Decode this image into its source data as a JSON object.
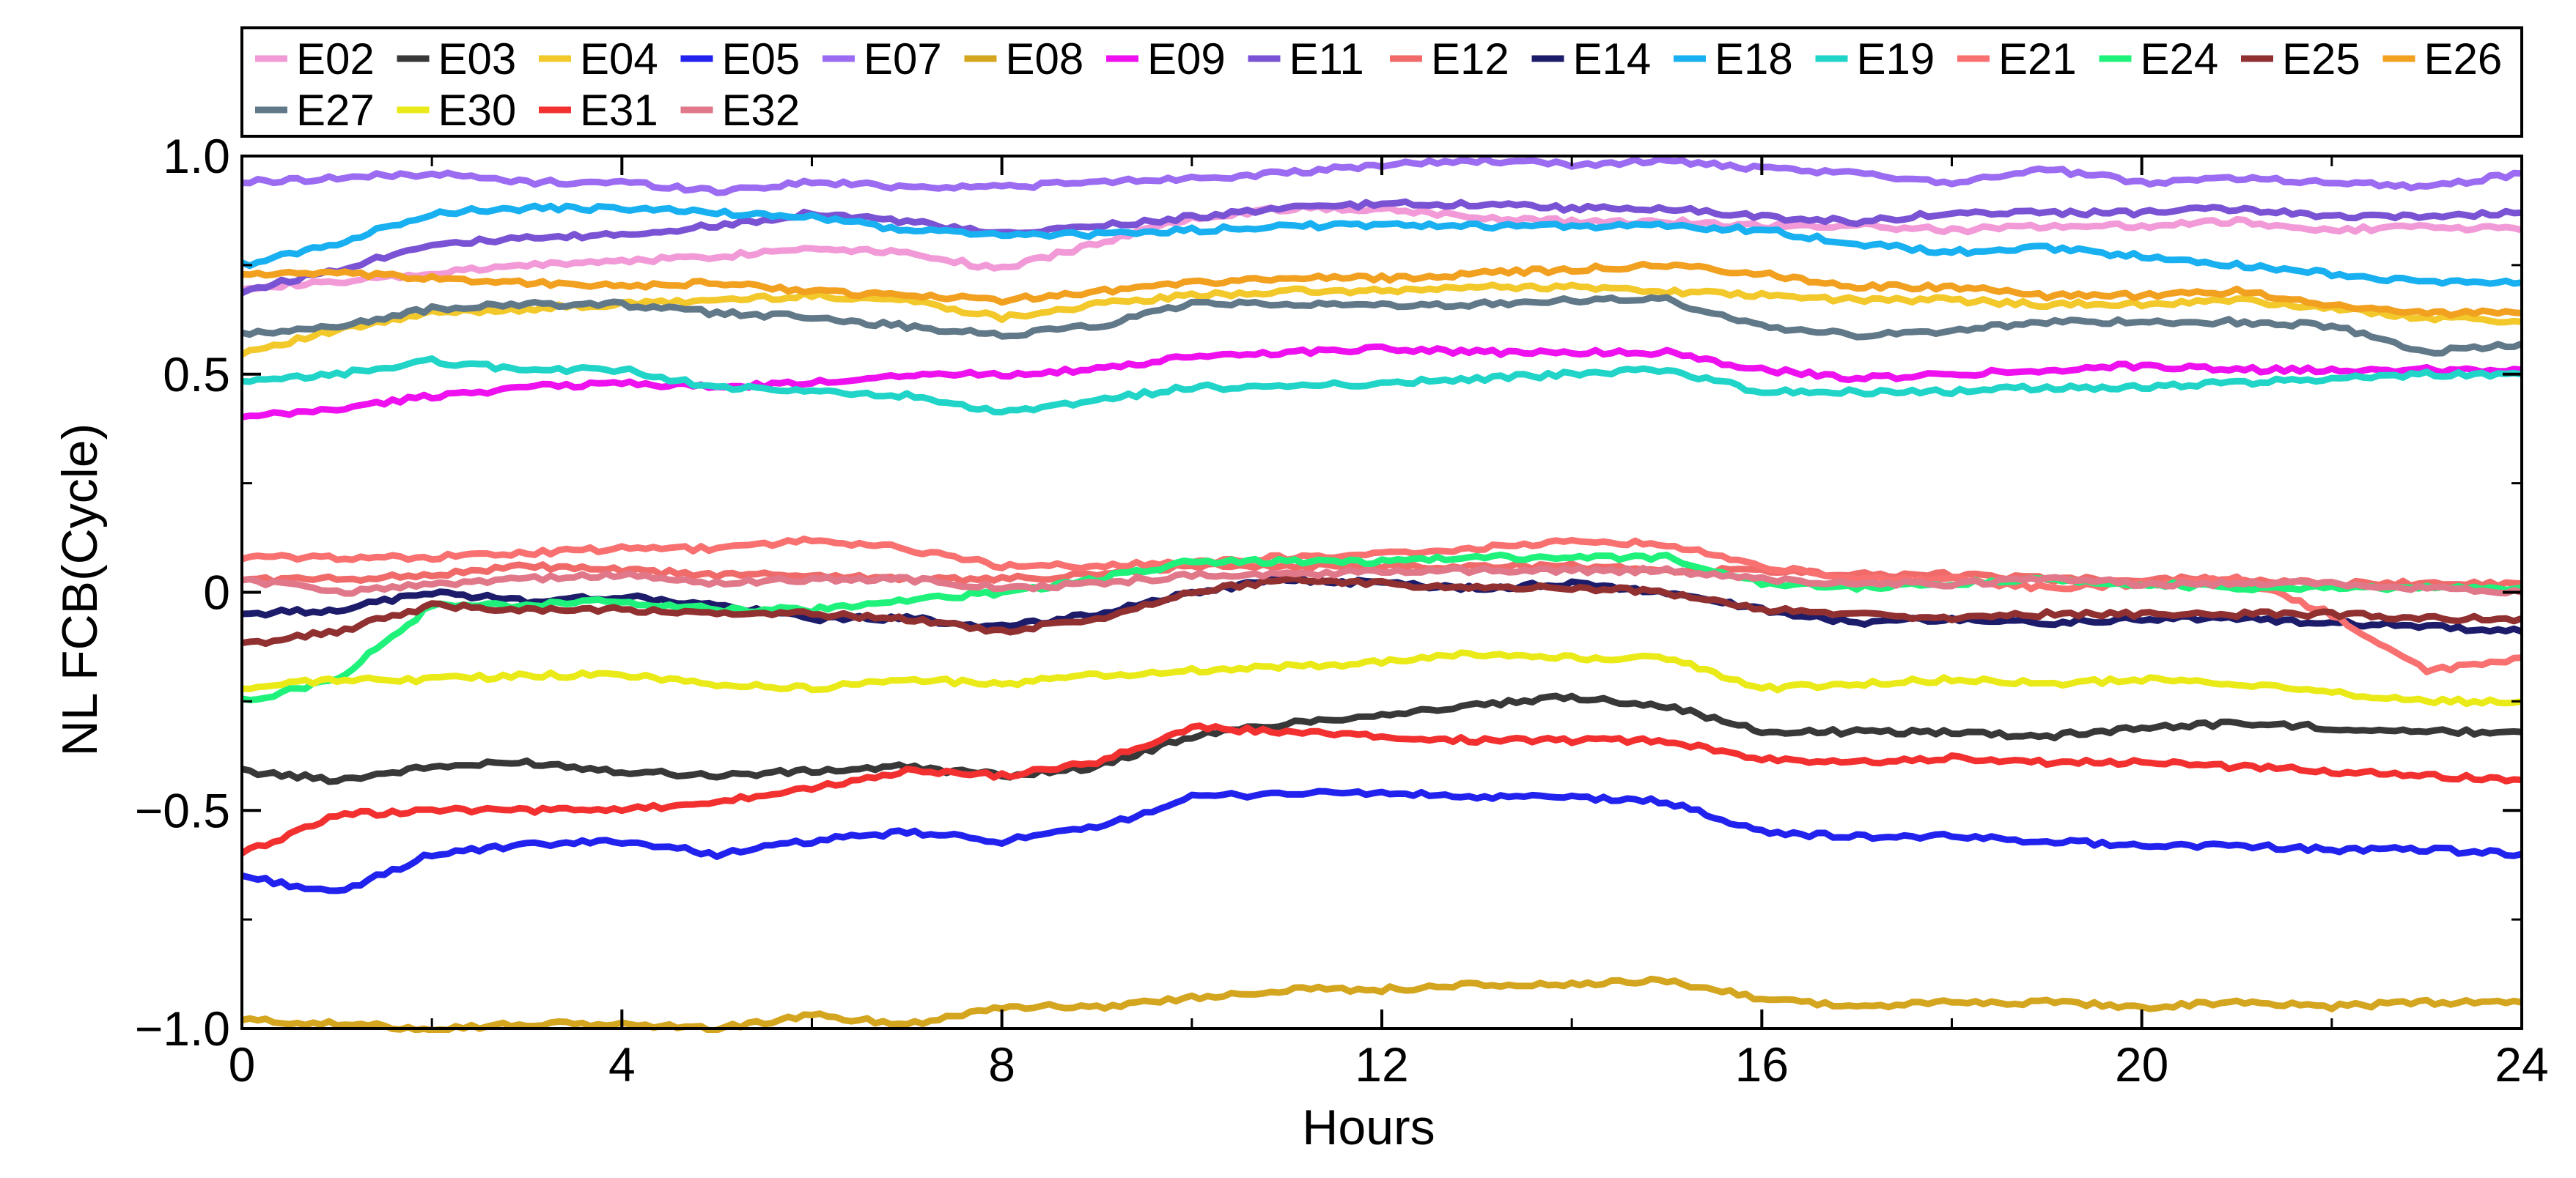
{
  "chart_data": {
    "type": "line",
    "xlabel": "Hours",
    "ylabel": "NL FCB(Cycle)",
    "xlim": [
      0,
      24
    ],
    "ylim": [
      -1.0,
      1.0
    ],
    "x_ticks": [
      0,
      4,
      8,
      12,
      16,
      20,
      24
    ],
    "x_tick_labels": [
      "0",
      "4",
      "8",
      "12",
      "16",
      "20",
      "24"
    ],
    "y_ticks": [
      1.0,
      0.5,
      0,
      -0.5,
      -1.0
    ],
    "y_tick_labels": [
      "1.0",
      "0.5",
      "0",
      "−0.5",
      "−1.0"
    ],
    "grid": false,
    "legend_position": "top, above plot",
    "x": [
      0,
      1,
      2,
      3,
      4,
      5,
      6,
      7,
      8,
      9,
      10,
      11,
      12,
      13,
      14,
      15,
      16,
      17,
      18,
      19,
      20,
      21,
      22,
      23,
      24
    ],
    "series": [
      {
        "name": "E02",
        "color": "#f29ad7",
        "values": [
          0.7,
          0.71,
          0.73,
          0.75,
          0.76,
          0.77,
          0.79,
          0.78,
          0.74,
          0.8,
          0.86,
          0.88,
          0.88,
          0.86,
          0.85,
          0.85,
          0.84,
          0.84,
          0.83,
          0.84,
          0.84,
          0.85,
          0.83,
          0.84,
          0.83
        ]
      },
      {
        "name": "E03",
        "color": "#383838",
        "values": [
          -0.41,
          -0.43,
          -0.4,
          -0.39,
          -0.41,
          -0.42,
          -0.41,
          -0.4,
          -0.42,
          -0.4,
          -0.33,
          -0.3,
          -0.28,
          -0.26,
          -0.24,
          -0.26,
          -0.32,
          -0.32,
          -0.32,
          -0.33,
          -0.31,
          -0.3,
          -0.31,
          -0.32,
          -0.32
        ]
      },
      {
        "name": "E04",
        "color": "#f2c82a",
        "values": [
          0.55,
          0.6,
          0.64,
          0.65,
          0.66,
          0.67,
          0.68,
          0.67,
          0.63,
          0.66,
          0.68,
          0.69,
          0.69,
          0.7,
          0.7,
          0.69,
          0.68,
          0.67,
          0.67,
          0.66,
          0.66,
          0.67,
          0.65,
          0.63,
          0.62
        ]
      },
      {
        "name": "E05",
        "color": "#2222ee",
        "values": [
          -0.65,
          -0.69,
          -0.6,
          -0.58,
          -0.57,
          -0.6,
          -0.57,
          -0.55,
          -0.57,
          -0.54,
          -0.47,
          -0.46,
          -0.46,
          -0.47,
          -0.47,
          -0.48,
          -0.55,
          -0.56,
          -0.56,
          -0.57,
          -0.58,
          -0.58,
          -0.59,
          -0.59,
          -0.6
        ]
      },
      {
        "name": "E07",
        "color": "#9b6bf2",
        "values": [
          0.94,
          0.95,
          0.96,
          0.94,
          0.94,
          0.92,
          0.94,
          0.93,
          0.93,
          0.94,
          0.95,
          0.96,
          0.98,
          0.99,
          0.98,
          0.99,
          0.97,
          0.96,
          0.94,
          0.97,
          0.94,
          0.95,
          0.94,
          0.93,
          0.96
        ]
      },
      {
        "name": "E08",
        "color": "#d4a51e",
        "values": [
          -0.98,
          -0.99,
          -1.0,
          -0.99,
          -0.99,
          -1.0,
          -0.97,
          -0.99,
          -0.95,
          -0.95,
          -0.93,
          -0.91,
          -0.91,
          -0.9,
          -0.9,
          -0.89,
          -0.93,
          -0.95,
          -0.94,
          -0.94,
          -0.95,
          -0.94,
          -0.95,
          -0.94,
          -0.94
        ]
      },
      {
        "name": "E09",
        "color": "#ee10ee",
        "values": [
          0.4,
          0.42,
          0.45,
          0.47,
          0.48,
          0.47,
          0.48,
          0.5,
          0.5,
          0.51,
          0.54,
          0.55,
          0.56,
          0.55,
          0.55,
          0.55,
          0.51,
          0.49,
          0.5,
          0.51,
          0.52,
          0.51,
          0.51,
          0.51,
          0.51
        ]
      },
      {
        "name": "E11",
        "color": "#7a52d4",
        "values": [
          0.69,
          0.74,
          0.8,
          0.81,
          0.82,
          0.84,
          0.87,
          0.85,
          0.82,
          0.84,
          0.86,
          0.88,
          0.89,
          0.89,
          0.88,
          0.88,
          0.86,
          0.85,
          0.87,
          0.87,
          0.87,
          0.88,
          0.86,
          0.86,
          0.87
        ]
      },
      {
        "name": "E12",
        "color": "#f06a6a",
        "values": [
          0.03,
          0.03,
          0.04,
          0.06,
          0.05,
          0.04,
          0.04,
          0.03,
          0.03,
          0.04,
          0.06,
          0.06,
          0.06,
          0.06,
          0.06,
          0.05,
          0.05,
          0.04,
          0.04,
          0.03,
          0.03,
          0.03,
          0.02,
          0.02,
          0.02
        ]
      },
      {
        "name": "E14",
        "color": "#1c1c6a",
        "values": [
          -0.05,
          -0.04,
          0.0,
          -0.02,
          -0.01,
          -0.03,
          -0.06,
          -0.06,
          -0.08,
          -0.05,
          0.0,
          0.03,
          0.02,
          0.01,
          0.02,
          0.0,
          -0.04,
          -0.07,
          -0.06,
          -0.07,
          -0.06,
          -0.06,
          -0.07,
          -0.08,
          -0.09
        ]
      },
      {
        "name": "E18",
        "color": "#18b0f0",
        "values": [
          0.75,
          0.8,
          0.87,
          0.88,
          0.88,
          0.87,
          0.86,
          0.83,
          0.82,
          0.82,
          0.83,
          0.84,
          0.84,
          0.84,
          0.84,
          0.84,
          0.83,
          0.8,
          0.78,
          0.79,
          0.77,
          0.75,
          0.73,
          0.71,
          0.71
        ]
      },
      {
        "name": "E19",
        "color": "#20d4c8",
        "values": [
          0.48,
          0.5,
          0.53,
          0.51,
          0.51,
          0.47,
          0.46,
          0.45,
          0.41,
          0.44,
          0.47,
          0.47,
          0.48,
          0.49,
          0.5,
          0.51,
          0.46,
          0.46,
          0.46,
          0.47,
          0.47,
          0.48,
          0.49,
          0.5,
          0.5
        ]
      },
      {
        "name": "E21",
        "color": "#f87070",
        "values": [
          0.08,
          0.08,
          0.08,
          0.09,
          0.1,
          0.1,
          0.12,
          0.1,
          0.06,
          0.06,
          0.07,
          0.08,
          0.09,
          0.1,
          0.12,
          0.11,
          0.06,
          0.03,
          0.03,
          0.01,
          0.02,
          0.03,
          -0.05,
          -0.18,
          -0.15
        ]
      },
      {
        "name": "E24",
        "color": "#1ef27a",
        "values": [
          -0.25,
          -0.2,
          -0.03,
          -0.03,
          -0.02,
          -0.04,
          -0.04,
          -0.02,
          0.0,
          0.03,
          0.07,
          0.07,
          0.07,
          0.08,
          0.08,
          0.08,
          0.02,
          0.01,
          0.02,
          0.03,
          0.02,
          0.01,
          0.01,
          0.01,
          0.01
        ]
      },
      {
        "name": "E25",
        "color": "#903030",
        "values": [
          -0.12,
          -0.09,
          -0.03,
          -0.04,
          -0.04,
          -0.05,
          -0.05,
          -0.06,
          -0.09,
          -0.06,
          0.0,
          0.03,
          0.02,
          0.01,
          0.01,
          0.0,
          -0.04,
          -0.05,
          -0.06,
          -0.05,
          -0.05,
          -0.05,
          -0.05,
          -0.06,
          -0.06
        ]
      },
      {
        "name": "E26",
        "color": "#f2a020",
        "values": [
          0.73,
          0.73,
          0.72,
          0.71,
          0.7,
          0.71,
          0.69,
          0.68,
          0.67,
          0.69,
          0.71,
          0.72,
          0.72,
          0.73,
          0.74,
          0.75,
          0.73,
          0.7,
          0.7,
          0.68,
          0.68,
          0.69,
          0.66,
          0.64,
          0.64
        ]
      },
      {
        "name": "E27",
        "color": "#607888",
        "values": [
          0.59,
          0.61,
          0.65,
          0.66,
          0.66,
          0.64,
          0.63,
          0.61,
          0.59,
          0.61,
          0.66,
          0.66,
          0.66,
          0.66,
          0.67,
          0.67,
          0.61,
          0.59,
          0.6,
          0.62,
          0.62,
          0.62,
          0.61,
          0.55,
          0.57
        ]
      },
      {
        "name": "E30",
        "color": "#eaea18",
        "values": [
          -0.22,
          -0.2,
          -0.2,
          -0.19,
          -0.19,
          -0.21,
          -0.22,
          -0.2,
          -0.21,
          -0.19,
          -0.18,
          -0.17,
          -0.16,
          -0.14,
          -0.15,
          -0.15,
          -0.22,
          -0.21,
          -0.2,
          -0.21,
          -0.2,
          -0.21,
          -0.23,
          -0.25,
          -0.25
        ]
      },
      {
        "name": "E31",
        "color": "#f23030",
        "values": [
          -0.6,
          -0.51,
          -0.5,
          -0.5,
          -0.5,
          -0.48,
          -0.45,
          -0.41,
          -0.42,
          -0.39,
          -0.31,
          -0.32,
          -0.33,
          -0.34,
          -0.34,
          -0.34,
          -0.38,
          -0.39,
          -0.38,
          -0.39,
          -0.39,
          -0.4,
          -0.41,
          -0.42,
          -0.43
        ]
      },
      {
        "name": "E32",
        "color": "#e0788a",
        "values": [
          0.03,
          0.0,
          0.02,
          0.03,
          0.04,
          0.02,
          0.03,
          0.03,
          0.01,
          0.02,
          0.04,
          0.04,
          0.05,
          0.05,
          0.05,
          0.05,
          0.03,
          0.02,
          0.02,
          0.03,
          0.02,
          0.02,
          0.02,
          0.01,
          0.0
        ]
      }
    ]
  }
}
